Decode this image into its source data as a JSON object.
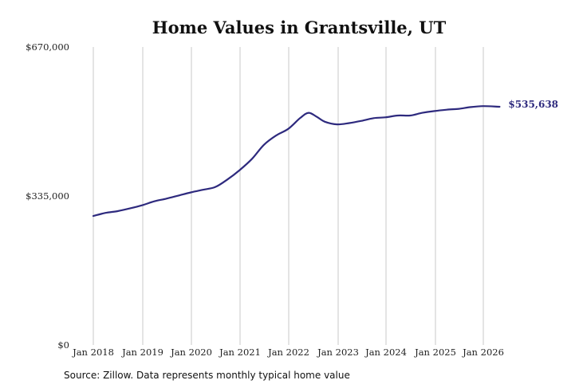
{
  "chart_data": {
    "type": "line",
    "title": "Home Values in Grantsville, UT",
    "xlabel": "",
    "ylabel": "",
    "ylim": [
      0,
      670000
    ],
    "yticks": [
      "$670,000",
      "$335,000",
      "$0"
    ],
    "ytick_values": [
      670000,
      335000,
      0
    ],
    "xticks": [
      "Jan 2018",
      "Jan 2019",
      "Jan 2020",
      "Jan 2021",
      "Jan 2022",
      "Jan 2023",
      "Jan 2024",
      "Jan 2025",
      "Jan 2026"
    ],
    "grid": "vertical",
    "line_color": "#2e2a7e",
    "end_label": "$535,638",
    "series": [
      {
        "values": [
          {
            "x": "2018-01",
            "y": 290000
          },
          {
            "x": "2018-04",
            "y": 297000
          },
          {
            "x": "2018-07",
            "y": 301000
          },
          {
            "x": "2018-10",
            "y": 307000
          },
          {
            "x": "2019-01",
            "y": 314000
          },
          {
            "x": "2019-04",
            "y": 323000
          },
          {
            "x": "2019-07",
            "y": 329000
          },
          {
            "x": "2019-10",
            "y": 336000
          },
          {
            "x": "2020-01",
            "y": 343000
          },
          {
            "x": "2020-04",
            "y": 349000
          },
          {
            "x": "2020-07",
            "y": 355000
          },
          {
            "x": "2020-10",
            "y": 372000
          },
          {
            "x": "2021-01",
            "y": 393000
          },
          {
            "x": "2021-04",
            "y": 418000
          },
          {
            "x": "2021-07",
            "y": 450000
          },
          {
            "x": "2021-10",
            "y": 471000
          },
          {
            "x": "2022-01",
            "y": 486000
          },
          {
            "x": "2022-04",
            "y": 511000
          },
          {
            "x": "2022-06",
            "y": 522000
          },
          {
            "x": "2022-08",
            "y": 513000
          },
          {
            "x": "2022-10",
            "y": 502000
          },
          {
            "x": "2023-01",
            "y": 496000
          },
          {
            "x": "2023-04",
            "y": 499000
          },
          {
            "x": "2023-07",
            "y": 504000
          },
          {
            "x": "2023-10",
            "y": 510000
          },
          {
            "x": "2024-01",
            "y": 512000
          },
          {
            "x": "2024-04",
            "y": 516000
          },
          {
            "x": "2024-07",
            "y": 516000
          },
          {
            "x": "2024-10",
            "y": 522000
          },
          {
            "x": "2025-01",
            "y": 526000
          },
          {
            "x": "2025-04",
            "y": 529000
          },
          {
            "x": "2025-07",
            "y": 531000
          },
          {
            "x": "2025-10",
            "y": 535000
          },
          {
            "x": "2026-01",
            "y": 537000
          },
          {
            "x": "2026-05",
            "y": 535638
          }
        ]
      }
    ]
  },
  "footer": {
    "source": "Source: Zillow. Data represents monthly typical home value"
  }
}
